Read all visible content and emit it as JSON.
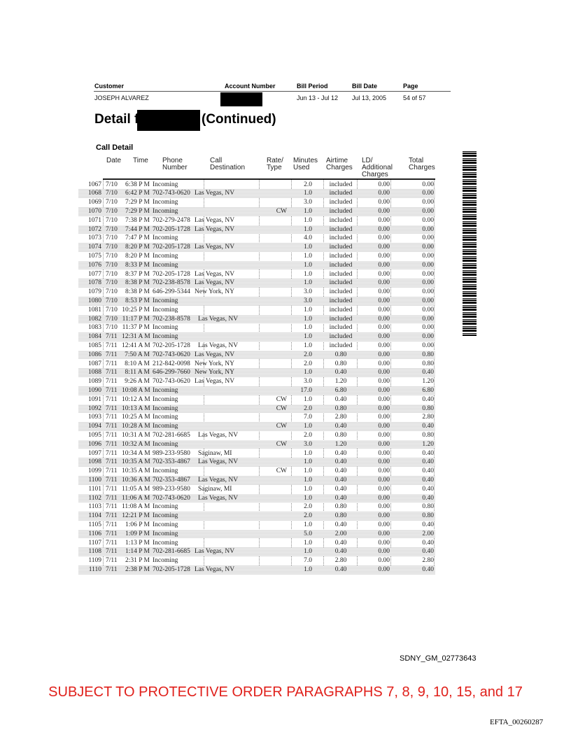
{
  "header": {
    "labels": {
      "customer": "Customer",
      "account": "Account Number",
      "period": "Bill Period",
      "date": "Bill Date",
      "page": "Page"
    },
    "values": {
      "customer": "JOSEPH ALVAREZ",
      "period": "Jun 13 - Jul 12",
      "date": "Jul 13, 2005",
      "page": "54 of 57"
    }
  },
  "title": {
    "prefix": "Detail for",
    "suffix": "(Continued)"
  },
  "section": "Call Detail",
  "columns": [
    "Date",
    "Time",
    "Phone Number",
    "Call Destination",
    "Rate/ Type",
    "Minutes Used",
    "Airtime Charges",
    "LD/ Additional Charges",
    "Total Charges"
  ],
  "rows": [
    [
      "1067",
      "7/10",
      "6:38 P M",
      "Incoming",
      "",
      "",
      "2.0",
      "included",
      "0.00",
      "0.00"
    ],
    [
      "1068",
      "7/10",
      "6:42 P M",
      "702-743-0620",
      "Las Vegas, NV",
      "",
      "1.0",
      "included",
      "0.00",
      "0.00"
    ],
    [
      "1069",
      "7/10",
      "7:29 P M",
      "Incoming",
      "",
      "",
      "3.0",
      "included",
      "0.00",
      "0.00"
    ],
    [
      "1070",
      "7/10",
      "7:29 P M",
      "Incoming",
      "",
      "CW",
      "1.0",
      "included",
      "0.00",
      "0.00"
    ],
    [
      "1071",
      "7/10",
      "7:38 P M",
      "702-279-2478",
      "Las Vegas, NV",
      "",
      "1.0",
      "included",
      "0.00",
      "0.00"
    ],
    [
      "1072",
      "7/10",
      "7:44 P M",
      "702-205-1728",
      "Las Vegas, NV",
      "",
      "1.0",
      "included",
      "0.00",
      "0.00"
    ],
    [
      "1073",
      "7/10",
      "7:47 P M",
      "Incoming",
      "",
      "",
      "4.0",
      "included",
      "0.00",
      "0.00"
    ],
    [
      "1074",
      "7/10",
      "8:20 P M",
      "702-205-1728",
      "Las Vegas, NV",
      "",
      "1.0",
      "included",
      "0.00",
      "0.00"
    ],
    [
      "1075",
      "7/10",
      "8:20 P M",
      "Incoming",
      "",
      "",
      "1.0",
      "included",
      "0.00",
      "0.00"
    ],
    [
      "1076",
      "7/10",
      "8:33 P M",
      "Incoming",
      "",
      "",
      "1.0",
      "included",
      "0.00",
      "0.00"
    ],
    [
      "1077",
      "7/10",
      "8:37 P M",
      "702-205-1728",
      "Las Vegas, NV",
      "",
      "1.0",
      "included",
      "0.00",
      "0.00"
    ],
    [
      "1078",
      "7/10",
      "8:38 P M",
      "702-238-8578",
      "Las Vegas, NV",
      "",
      "1.0",
      "included",
      "0.00",
      "0.00"
    ],
    [
      "1079",
      "7/10",
      "8:38 P M",
      "646-299-5344",
      "New York, NY",
      "",
      "3.0",
      "included",
      "0.00",
      "0.00"
    ],
    [
      "1080",
      "7/10",
      "8:53 P M",
      "Incoming",
      "",
      "",
      "3.0",
      "included",
      "0.00",
      "0.00"
    ],
    [
      "1081",
      "7/10",
      "10:25 P M",
      "Incoming",
      "",
      "",
      "1.0",
      "included",
      "0.00",
      "0.00"
    ],
    [
      "1082",
      "7/10",
      "11:17 P M",
      "702-238-8578",
      "Las Vegas, NV",
      "",
      "1.0",
      "included",
      "0.00",
      "0.00"
    ],
    [
      "1083",
      "7/10",
      "11:37 P M",
      "Incoming",
      "",
      "",
      "1.0",
      "included",
      "0.00",
      "0.00"
    ],
    [
      "1084",
      "7/11",
      "12:31 A M",
      "Incoming",
      "",
      "",
      "1.0",
      "included",
      "0.00",
      "0.00"
    ],
    [
      "1085",
      "7/11",
      "12:41 A M",
      "702-205-1728",
      "Las Vegas, NV",
      "",
      "1.0",
      "included",
      "0.00",
      "0.00"
    ],
    [
      "1086",
      "7/11",
      "7:50 A M",
      "702-743-0620",
      "Las Vegas, NV",
      "",
      "2.0",
      "0.80",
      "0.00",
      "0.80"
    ],
    [
      "1087",
      "7/11",
      "8:10 A M",
      "212-842-0098",
      "New York, NY",
      "",
      "2.0",
      "0.80",
      "0.00",
      "0.80"
    ],
    [
      "1088",
      "7/11",
      "8:11 A M",
      "646-299-7660",
      "New York, NY",
      "",
      "1.0",
      "0.40",
      "0.00",
      "0.40"
    ],
    [
      "1089",
      "7/11",
      "9:26 A M",
      "702-743-0620",
      "Las Vegas, NV",
      "",
      "3.0",
      "1.20",
      "0.00",
      "1.20"
    ],
    [
      "1090",
      "7/11",
      "10:08 A M",
      "Incoming",
      "",
      "",
      "17.0",
      "6.80",
      "0.00",
      "6.80"
    ],
    [
      "1091",
      "7/11",
      "10:12 A M",
      "Incoming",
      "",
      "CW",
      "1.0",
      "0.40",
      "0.00",
      "0.40"
    ],
    [
      "1092",
      "7/11",
      "10:13 A M",
      "Incoming",
      "",
      "CW",
      "2.0",
      "0.80",
      "0.00",
      "0.80"
    ],
    [
      "1093",
      "7/11",
      "10:25 A M",
      "Incoming",
      "",
      "",
      "7.0",
      "2.80",
      "0.00",
      "2.80"
    ],
    [
      "1094",
      "7/11",
      "10:28 A M",
      "Incoming",
      "",
      "CW",
      "1.0",
      "0.40",
      "0.00",
      "0.40"
    ],
    [
      "1095",
      "7/11",
      "10:31 A M",
      "702-281-6685",
      "Las Vegas, NV",
      "",
      "2.0",
      "0.80",
      "0.00",
      "0.80"
    ],
    [
      "1096",
      "7/11",
      "10:32 A M",
      "Incoming",
      "",
      "CW",
      "3.0",
      "1.20",
      "0.00",
      "1.20"
    ],
    [
      "1097",
      "7/11",
      "10:34 A M",
      "989-233-9580",
      "Saginaw, MI",
      "",
      "1.0",
      "0.40",
      "0.00",
      "0.40"
    ],
    [
      "1098",
      "7/11",
      "10:35 A M",
      "702-353-4867",
      "Las Vegas, NV",
      "",
      "1.0",
      "0.40",
      "0.00",
      "0.40"
    ],
    [
      "1099",
      "7/11",
      "10:35 A M",
      "Incoming",
      "",
      "CW",
      "1.0",
      "0.40",
      "0.00",
      "0.40"
    ],
    [
      "1100",
      "7/11",
      "10:36 A M",
      "702-353-4867",
      "Las Vegas, NV",
      "",
      "1.0",
      "0.40",
      "0.00",
      "0.40"
    ],
    [
      "1101",
      "7/11",
      "11:05 A M",
      "989-233-9580",
      "Saginaw, MI",
      "",
      "1.0",
      "0.40",
      "0.00",
      "0.40"
    ],
    [
      "1102",
      "7/11",
      "11:06 A M",
      "702-743-0620",
      "Las Vegas, NV",
      "",
      "1.0",
      "0.40",
      "0.00",
      "0.40"
    ],
    [
      "1103",
      "7/11",
      "11:08 A M",
      "Incoming",
      "",
      "",
      "2.0",
      "0.80",
      "0.00",
      "0.80"
    ],
    [
      "1104",
      "7/11",
      "12:21 P M",
      "Incoming",
      "",
      "",
      "2.0",
      "0.80",
      "0.00",
      "0.80"
    ],
    [
      "1105",
      "7/11",
      "1:06 P M",
      "Incoming",
      "",
      "",
      "1.0",
      "0.40",
      "0.00",
      "0.40"
    ],
    [
      "1106",
      "7/11",
      "1:09 P M",
      "Incoming",
      "",
      "",
      "5.0",
      "2.00",
      "0.00",
      "2.00"
    ],
    [
      "1107",
      "7/11",
      "1:13 P M",
      "Incoming",
      "",
      "",
      "1.0",
      "0.40",
      "0.00",
      "0.40"
    ],
    [
      "1108",
      "7/11",
      "1:14 P M",
      "702-281-6685",
      "Las Vegas, NV",
      "",
      "1.0",
      "0.40",
      "0.00",
      "0.40"
    ],
    [
      "1109",
      "7/11",
      "2:31 P M",
      "Incoming",
      "",
      "",
      "7.0",
      "2.80",
      "0.00",
      "2.80"
    ],
    [
      "1110",
      "7/11",
      "2:38 P M",
      "702-205-1728",
      "Las Vegas, NV",
      "",
      "1.0",
      "0.40",
      "0.00",
      "0.40"
    ]
  ],
  "footer": {
    "bates": "SDNY_GM_02773643",
    "protective": "SUBJECT TO PROTECTIVE ORDER PARAGRAPHS 7, 8, 9, 10, 15, and 17",
    "efta": "EFTA_00260287"
  },
  "colors": {
    "protective": "#e0201b",
    "redaction": "#000000"
  }
}
